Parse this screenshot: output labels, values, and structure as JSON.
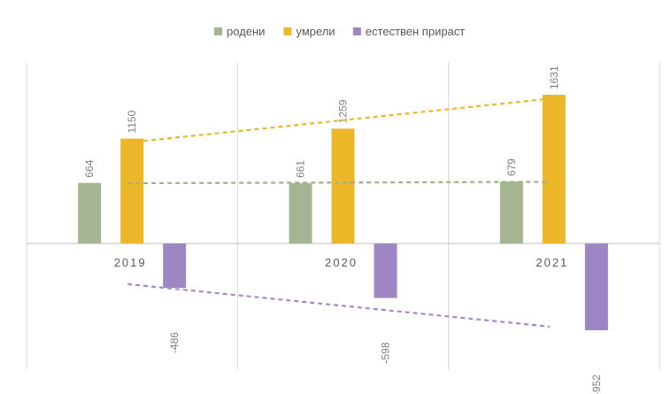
{
  "chart_data": {
    "type": "bar",
    "categories": [
      "2019",
      "2020",
      "2021"
    ],
    "series": [
      {
        "name": "родени",
        "values": [
          664,
          661,
          679
        ],
        "color": "#a5b592"
      },
      {
        "name": "умрели",
        "values": [
          1150,
          1259,
          1631
        ],
        "color": "#ecb82a"
      },
      {
        "name": "естествен прираст",
        "values": [
          -486,
          -598,
          -952
        ],
        "color": "#9e85c3"
      }
    ],
    "trendlines": [
      {
        "series": "родени",
        "style": "dashed",
        "color": "#9cb27f"
      },
      {
        "series": "умрели",
        "style": "dashed",
        "color": "#ecb82a"
      },
      {
        "series": "естествен прираст",
        "style": "dashed",
        "color": "#a889d0"
      }
    ],
    "data_labels": [
      "664",
      "1150",
      "-486",
      "661",
      "1259",
      "-598",
      "679",
      "1631",
      "-952"
    ],
    "legend_position": "top",
    "grid": "vertical category separators",
    "title": "",
    "xlabel": "",
    "ylabel": ""
  }
}
